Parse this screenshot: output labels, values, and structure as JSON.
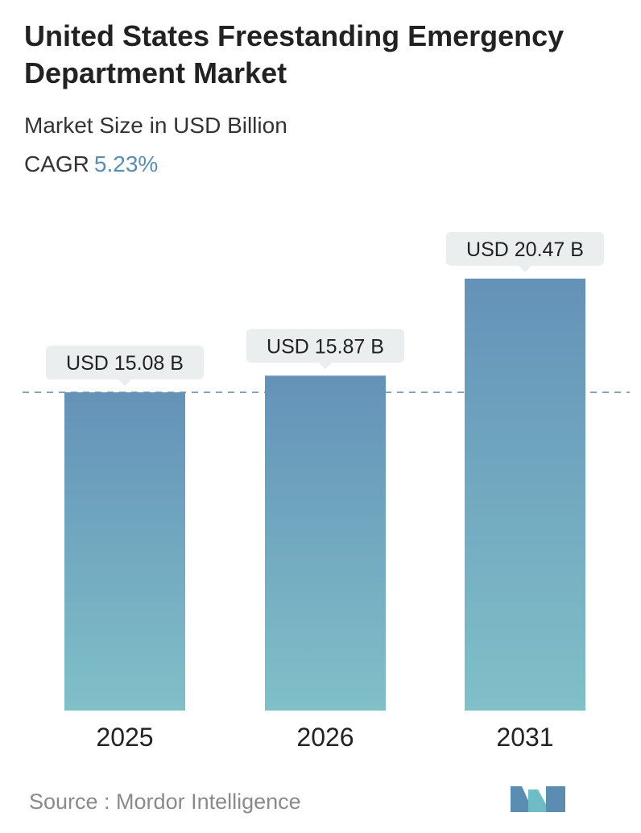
{
  "header": {
    "title": "United States Freestanding Emergency Department Market",
    "subtitle": "Market Size in USD Billion",
    "cagr_label": "CAGR",
    "cagr_value": "5.23%"
  },
  "chart_data": {
    "type": "bar",
    "categories": [
      "2025",
      "2026",
      "2031"
    ],
    "values": [
      15.08,
      15.87,
      20.47
    ],
    "data_labels": [
      "USD 15.08 B",
      "USD 15.87 B",
      "USD 20.47 B"
    ],
    "reference_line_value": 15.08,
    "colors": {
      "bar_top": "#6492b8",
      "bar_bottom": "#80c0c8",
      "dashed_line": "#5b86a8",
      "label_bg": "#eaeeee"
    }
  },
  "footer": {
    "source_text": "Source :  Mordor Intelligence",
    "logo_colors": [
      "#5b8db0",
      "#6dbcc6"
    ]
  }
}
